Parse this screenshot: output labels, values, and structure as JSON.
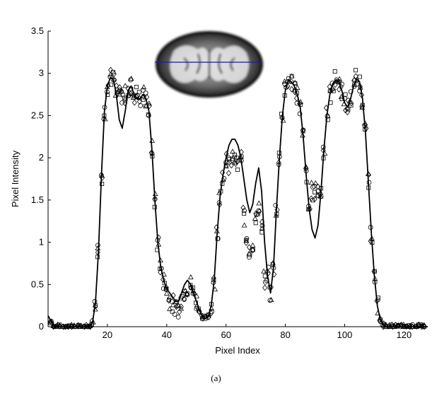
{
  "caption": "(a)",
  "inset": {
    "description_icon": "brain-axial-slice-image",
    "line_color": "#1a1aa8"
  },
  "chart_data": {
    "type": "line",
    "title": "",
    "xlabel": "Pixel Index",
    "ylabel": "Pixel Intensity",
    "xlim": [
      0,
      128
    ],
    "ylim": [
      0,
      3.5
    ],
    "xticks": [
      20,
      40,
      60,
      80,
      100,
      120
    ],
    "yticks": [
      0,
      0.5,
      1,
      1.5,
      2,
      2.5,
      3,
      3.5
    ],
    "ytick_labels": [
      "0",
      "0.5",
      "1",
      "1.5",
      "2",
      "2.5",
      "3",
      "3.5"
    ],
    "grid": false,
    "series": [
      {
        "style": "solid-line",
        "x": [
          0,
          2,
          4,
          6,
          8,
          10,
          12,
          14,
          15,
          16,
          17,
          18,
          19,
          20,
          21,
          22,
          23,
          24,
          25,
          26,
          27,
          28,
          29,
          30,
          31,
          32,
          33,
          34,
          35,
          36,
          37,
          38,
          39,
          40,
          41,
          42,
          43,
          44,
          45,
          46,
          47,
          48,
          49,
          50,
          51,
          52,
          53,
          54,
          55,
          56,
          57,
          58,
          59,
          60,
          61,
          62,
          63,
          64,
          65,
          66,
          67,
          68,
          69,
          70,
          71,
          72,
          73,
          74,
          75,
          76,
          77,
          78,
          79,
          80,
          81,
          82,
          83,
          84,
          85,
          86,
          87,
          88,
          89,
          90,
          91,
          92,
          93,
          94,
          95,
          96,
          97,
          98,
          99,
          100,
          101,
          102,
          103,
          104,
          105,
          106,
          107,
          108,
          109,
          110,
          111,
          112,
          113,
          114,
          116,
          120,
          124,
          128
        ],
        "y": [
          0.13,
          0.0,
          0.0,
          0.0,
          0.0,
          0.0,
          0.0,
          0.0,
          0.05,
          0.3,
          0.9,
          1.8,
          2.55,
          2.85,
          2.95,
          2.93,
          2.75,
          2.45,
          2.35,
          2.55,
          2.8,
          2.85,
          2.75,
          2.7,
          2.7,
          2.75,
          2.7,
          2.55,
          2.1,
          1.5,
          1.0,
          0.7,
          0.55,
          0.45,
          0.4,
          0.35,
          0.3,
          0.3,
          0.4,
          0.5,
          0.55,
          0.5,
          0.4,
          0.3,
          0.2,
          0.12,
          0.1,
          0.12,
          0.25,
          0.55,
          1.1,
          1.55,
          1.8,
          2.0,
          2.15,
          2.22,
          2.22,
          2.15,
          2.0,
          1.75,
          1.5,
          1.35,
          1.45,
          1.7,
          1.88,
          1.6,
          1.0,
          0.6,
          0.4,
          0.7,
          1.4,
          2.0,
          2.5,
          2.8,
          2.92,
          2.9,
          2.85,
          2.75,
          2.6,
          2.25,
          1.8,
          1.4,
          1.15,
          1.05,
          1.2,
          1.6,
          2.1,
          2.5,
          2.75,
          2.88,
          2.92,
          2.9,
          2.8,
          2.65,
          2.6,
          2.7,
          2.85,
          2.93,
          2.9,
          2.7,
          2.3,
          1.7,
          1.1,
          0.6,
          0.25,
          0.08,
          0.02,
          0.0,
          0.0,
          0.0,
          0.0,
          0.0
        ]
      }
    ],
    "markers": [
      "circle",
      "square",
      "triangle",
      "diamond"
    ]
  }
}
